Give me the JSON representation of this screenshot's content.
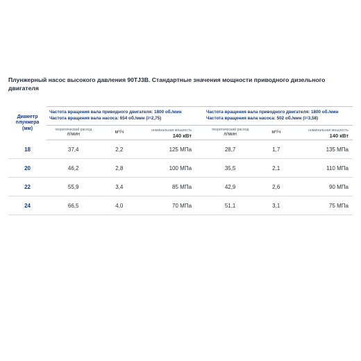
{
  "title": "Плунжерный насос высокого давления 90TJ3B. Стандартные значения мощности приводного дизельного двигателя",
  "diaHeader": {
    "line1": "Диаметр",
    "line2": "плунжера",
    "line3": "(мм)"
  },
  "groups": [
    {
      "line1": "Частота вращения вала приводного двигателя: 1800 об./мин",
      "line2": "Частота вращения вала насоса: 654 об./мин (i=2,75)"
    },
    {
      "line1": "Частота вращения вала приводного двигателя: 1800 об./мин",
      "line2": "Частота вращения вала насоса: 502 об./мин (i=3,58)"
    }
  ],
  "subLabels": {
    "flowSmall": "теоретический расход",
    "lmin": "л/мин",
    "m3h": "м³/ч",
    "nomSmall": "номинальная мощность",
    "nomPower": "140 кВт"
  },
  "rows": [
    {
      "dia": "18",
      "a_lm": "37,4",
      "a_m3": "2,2",
      "a_nom": "125 МПа",
      "b_lm": "28,7",
      "b_m3": "1,7",
      "b_nom": "135 МПа"
    },
    {
      "dia": "20",
      "a_lm": "46,2",
      "a_m3": "2,8",
      "a_nom": "100 МПа",
      "b_lm": "35,5",
      "b_m3": "2,1",
      "b_nom": "110 МПа"
    },
    {
      "dia": "22",
      "a_lm": "55,9",
      "a_m3": "3,4",
      "a_nom": "85 МПа",
      "b_lm": "42,9",
      "b_m3": "2,6",
      "b_nom": "90 МПа"
    },
    {
      "dia": "24",
      "a_lm": "66,5",
      "a_m3": "4,0",
      "a_nom": "70 МПа",
      "b_lm": "51,1",
      "b_m3": "3,1",
      "b_nom": "75 МПа"
    }
  ],
  "colors": {
    "accent": "#183a7a",
    "text": "#2a2f38",
    "muted": "#5a6270",
    "rule": "#c2c7cf",
    "rowRule": "#d6dae0",
    "bg": "#ffffff"
  },
  "table": {
    "type": "table",
    "columnWidthsPct": [
      10,
      14,
      10,
      15,
      2,
      14,
      10,
      15
    ],
    "rowHeightPx": 26,
    "fontSizes": {
      "title": 8.6,
      "groupHeader": 6.3,
      "diaHeader": 7,
      "subSmall": 5.2,
      "unit": 7,
      "nomPower": 7.5,
      "body": 8
    }
  }
}
